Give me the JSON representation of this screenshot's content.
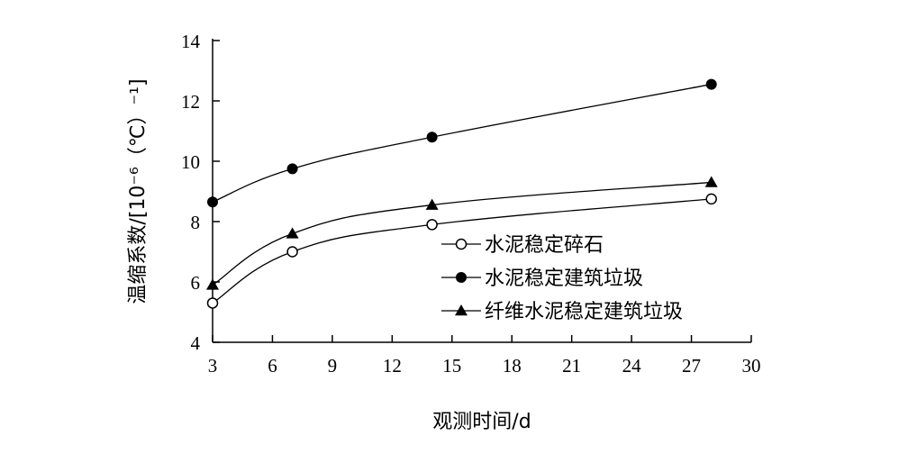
{
  "chart_data": {
    "type": "line",
    "title": "",
    "xlabel": "观测时间/d",
    "ylabel": "温缩系数/[10⁻⁶（℃）⁻¹]",
    "xlim": [
      3,
      30
    ],
    "ylim": [
      4,
      14
    ],
    "xticks": [
      3,
      6,
      9,
      12,
      15,
      18,
      21,
      24,
      27,
      30
    ],
    "yticks": [
      4,
      6,
      8,
      10,
      12,
      14
    ],
    "grid": false,
    "legend_position": "right",
    "series": [
      {
        "name": "水泥稳定碎石",
        "marker": "open-circle",
        "x": [
          3,
          7,
          14,
          28
        ],
        "y": [
          5.3,
          7.0,
          7.9,
          8.75
        ]
      },
      {
        "name": "水泥稳定建筑垃圾",
        "marker": "filled-circle",
        "x": [
          3,
          7,
          14,
          28
        ],
        "y": [
          8.65,
          9.75,
          10.8,
          12.55
        ]
      },
      {
        "name": "纤维水泥稳定建筑垃圾",
        "marker": "filled-triangle",
        "x": [
          3,
          7,
          14,
          28
        ],
        "y": [
          5.9,
          7.6,
          8.55,
          9.3
        ]
      }
    ]
  }
}
